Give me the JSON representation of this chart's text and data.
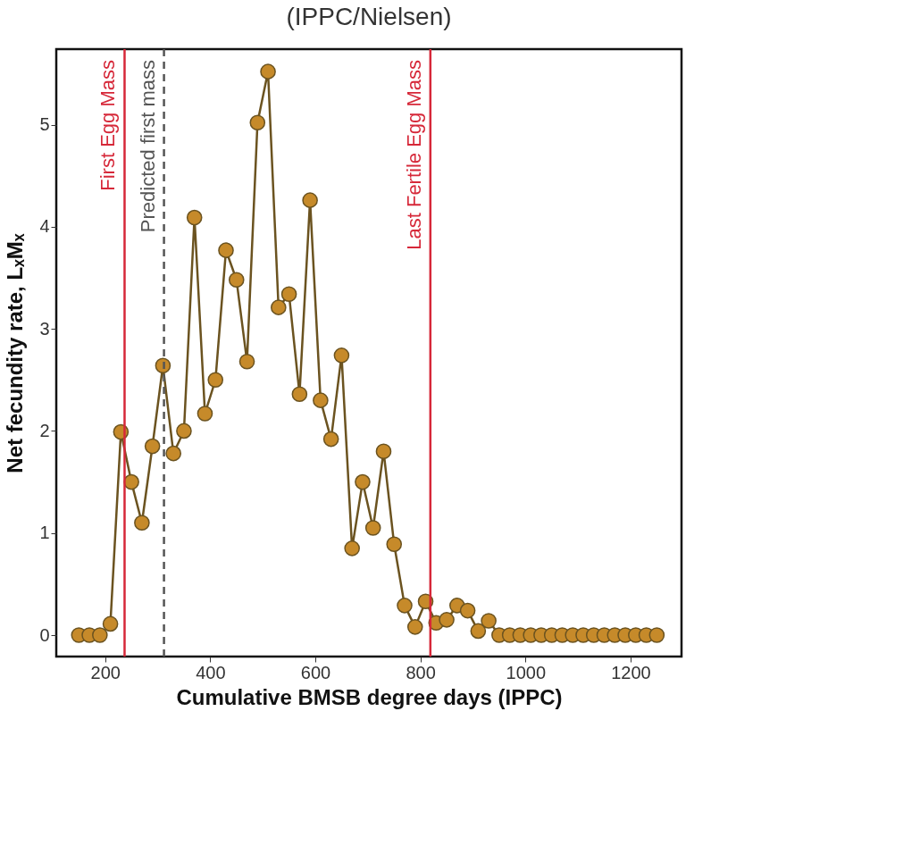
{
  "chart_data": {
    "type": "line",
    "xlabel": "Cumulative BMSB degree days (IPPC)",
    "ylabel": "Net fecundity rate, LₓMₓ",
    "annotations": [
      "(IPPC/Nielsen)"
    ],
    "x": [
      150,
      170,
      190,
      210,
      230,
      250,
      270,
      290,
      310,
      330,
      350,
      370,
      390,
      410,
      430,
      450,
      470,
      490,
      510,
      530,
      550,
      570,
      590,
      610,
      630,
      650,
      670,
      690,
      710,
      730,
      750,
      770,
      790,
      810,
      830,
      850,
      870,
      890,
      910,
      930,
      950,
      970,
      990,
      1010,
      1030,
      1050,
      1070,
      1090,
      1110,
      1130,
      1150,
      1170,
      1190,
      1210,
      1230,
      1250
    ],
    "series": [
      {
        "color": "#c68a2a",
        "values": [
          0,
          0,
          0,
          0.11,
          1.99,
          1.5,
          1.1,
          1.85,
          2.64,
          1.78,
          2.0,
          4.09,
          2.17,
          2.5,
          3.77,
          3.48,
          2.68,
          5.02,
          5.52,
          3.21,
          3.34,
          2.36,
          4.26,
          2.3,
          1.92,
          2.74,
          0.85,
          1.5,
          1.05,
          1.8,
          0.89,
          0.29,
          0.08,
          0.33,
          0.12,
          0.15,
          0.29,
          0.24,
          0.04,
          0.14,
          0,
          0,
          0,
          0,
          0,
          0,
          0,
          0,
          0,
          0,
          0,
          0,
          0,
          0,
          0,
          0
        ]
      }
    ],
    "xlim": [
      107,
      1297
    ],
    "ylim": [
      -0.21,
      5.74
    ],
    "xticks": [
      200,
      400,
      600,
      800,
      1000,
      1200
    ],
    "yticks": [
      0,
      1,
      2,
      3,
      4,
      5
    ],
    "ref_lines": [
      {
        "axis": "x",
        "value": 237,
        "label": "First Egg Mass",
        "color": "#d62839",
        "line_style": "solid"
      },
      {
        "axis": "x",
        "value": 312,
        "label": "Predicted first mass",
        "color": "#555555",
        "line_style": "dashed"
      },
      {
        "axis": "x",
        "value": 819,
        "label": "Last Fertile Egg Mass",
        "color": "#d62839",
        "line_style": "solid"
      }
    ],
    "marker": "circle",
    "line_style": "solid",
    "grid": false
  }
}
